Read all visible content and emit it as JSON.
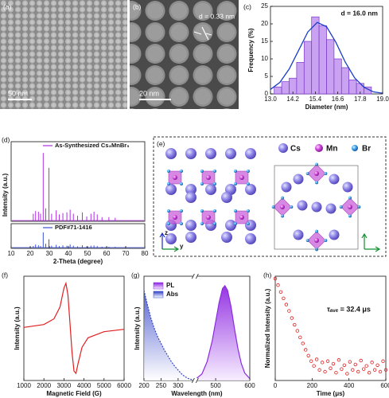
{
  "chart_data": [
    {
      "type": "image",
      "panel": "(a)",
      "scale_bar": "50 nm"
    },
    {
      "type": "image",
      "panel": "(b)",
      "scale_bar": "20 nm",
      "annotation": "d = 0.33 nm"
    },
    {
      "type": "histogram",
      "panel": "(c)",
      "xlabel": "Diameter (nm)",
      "ylabel": "Frequency (%)",
      "annotation": "d = 16.0 nm",
      "bins": [
        13.2,
        13.6,
        14.0,
        14.4,
        14.8,
        15.2,
        15.6,
        16.0,
        16.4,
        16.8,
        17.2,
        17.6,
        18.0,
        18.4
      ],
      "values": [
        2,
        3.5,
        4.5,
        9,
        15,
        22,
        19.5,
        15.5,
        10,
        7.5,
        4,
        3,
        2
      ],
      "color": "#c9a2f2",
      "fit": {
        "color": "#1a3cc8",
        "x": [
          13.0,
          13.5,
          14.0,
          14.5,
          15.0,
          15.5,
          16.0,
          16.5,
          17.0,
          17.5,
          18.0,
          18.5,
          19.0
        ],
        "values": [
          1.3,
          3.3,
          7.1,
          12.4,
          17.7,
          20.4,
          19.2,
          14.7,
          9.1,
          4.6,
          1.9,
          0.6,
          0.2
        ]
      },
      "xlim": [
        13.0,
        19.0
      ],
      "xticks": [
        {
          "value": 13,
          "label": "13.0"
        },
        {
          "value": 14.2,
          "label": "14.2"
        },
        {
          "value": 15.4,
          "label": "15.4"
        },
        {
          "value": 16.6,
          "label": "16.6"
        },
        {
          "value": 17.8,
          "label": "17.8"
        },
        {
          "value": 19,
          "label": "19.0"
        }
      ],
      "ylim": [
        0,
        25
      ],
      "yticks": [
        0,
        5,
        10,
        15,
        20,
        25
      ]
    },
    {
      "type": "xrd",
      "panel": "(d)",
      "xlabel": "2-Theta (degree)",
      "ylabel": "Intensity (a.u.)",
      "xlim": [
        10,
        80
      ],
      "xticks": [
        10,
        20,
        30,
        40,
        50,
        60,
        70,
        80
      ],
      "ylim": [
        0,
        1.05
      ],
      "series": [
        {
          "name": "As-Synthesized Cs₃MnBr₅",
          "color": "#b030e0",
          "x": [
            21.6,
            22.8,
            24.3,
            25.4,
            26.8,
            28.1,
            29.8,
            31.2,
            33.6,
            35.2,
            37.1,
            39.2,
            40.9,
            42.6,
            44.8,
            47.3,
            49.6,
            51.8,
            53.4,
            55.1,
            57.6,
            61.2,
            64.5
          ],
          "values": [
            0.1,
            0.14,
            0.13,
            0.1,
            1.0,
            0.18,
            0.78,
            0.1,
            0.15,
            0.09,
            0.11,
            0.12,
            0.16,
            0.1,
            0.07,
            0.12,
            0.06,
            0.1,
            0.13,
            0.09,
            0.05,
            0.05,
            0.04
          ]
        },
        {
          "name": "PDF#71-1416",
          "color": "#3b50d8",
          "x": [
            21.6,
            22.8,
            24.3,
            25.4,
            26.8,
            28.1,
            29.8,
            31.2,
            33.6,
            35.2,
            37.1,
            39.2,
            40.9,
            42.6,
            44.8,
            47.3,
            49.6,
            51.8,
            53.4,
            55.1,
            57.6,
            61.2,
            64.5
          ],
          "values": [
            0.1,
            0.2,
            0.15,
            0.1,
            1.0,
            0.25,
            0.55,
            0.12,
            0.18,
            0.1,
            0.14,
            0.12,
            0.2,
            0.12,
            0.08,
            0.15,
            0.07,
            0.12,
            0.14,
            0.1,
            0.06,
            0.05,
            0.05
          ]
        }
      ]
    },
    {
      "type": "structure",
      "panel": "(e)",
      "legend": [
        "Cs",
        "Mn",
        "Br"
      ],
      "axes": [
        "z",
        "y"
      ]
    },
    {
      "type": "line",
      "panel": "(f)",
      "xlabel": "Magnetic Field (G)",
      "ylabel": "Intensity (a.u.)",
      "color": "#e02020",
      "x": [
        1000,
        2000,
        2500,
        2800,
        3000,
        3100,
        3200,
        3300,
        3400,
        3500,
        3600,
        3700,
        3900,
        4200,
        5000,
        6000
      ],
      "values": [
        0.02,
        0.08,
        0.2,
        0.45,
        0.85,
        0.95,
        0.7,
        0.1,
        -0.5,
        -0.9,
        -0.95,
        -0.75,
        -0.4,
        -0.2,
        -0.07,
        -0.02
      ],
      "xlim": [
        1000,
        6000
      ],
      "xticks": [
        1000,
        2000,
        3000,
        4000,
        5000,
        6000
      ],
      "ylim": [
        -1.1,
        1.1
      ]
    },
    {
      "type": "spectrum",
      "panel": "(g)",
      "xlabel": "Wavelength (nm)",
      "ylabel": "Intensity (a.u.)",
      "xlim": [
        200,
        600
      ],
      "xbreak": [
        350,
        440
      ],
      "xticks": [
        200,
        250,
        300,
        500,
        600
      ],
      "ylim": [
        0,
        1.1
      ],
      "series": [
        {
          "name": "PL",
          "color": "#8a2be2",
          "x": [
            440,
            460,
            475,
            490,
            500,
            510,
            520,
            527,
            535,
            545,
            555,
            565,
            575,
            585,
            600
          ],
          "values": [
            0.01,
            0.07,
            0.2,
            0.42,
            0.62,
            0.82,
            0.97,
            1.0,
            0.95,
            0.78,
            0.55,
            0.34,
            0.18,
            0.08,
            0.02
          ]
        },
        {
          "name": "Abs",
          "color": "#2f45c8",
          "x": [
            200,
            210,
            220,
            230,
            240,
            250,
            260,
            270,
            280,
            290,
            300,
            310,
            320,
            330,
            340
          ],
          "values": [
            0.95,
            0.8,
            0.66,
            0.55,
            0.46,
            0.39,
            0.32,
            0.26,
            0.2,
            0.15,
            0.11,
            0.07,
            0.04,
            0.02,
            0.01
          ]
        }
      ]
    },
    {
      "type": "scatter",
      "panel": "(h)",
      "xlabel": "Time (μs)",
      "ylabel": "Normalized Intensity (a.u.)",
      "annotation": "τₐᵥₑ = 32.4 μs",
      "color": "#e02020",
      "yscale": "log",
      "x": [
        0,
        15,
        30,
        45,
        60,
        75,
        90,
        105,
        120,
        135,
        150,
        165,
        180,
        195,
        210,
        225,
        240,
        255,
        270,
        285,
        300,
        315,
        330,
        345,
        360,
        375,
        390,
        405,
        420,
        435,
        450,
        465,
        480,
        495,
        510,
        525,
        540,
        555,
        570,
        585,
        600
      ],
      "values": [
        1.0,
        0.78,
        0.6,
        0.47,
        0.37,
        0.29,
        0.22,
        0.17,
        0.135,
        0.105,
        0.083,
        0.065,
        0.052,
        0.042,
        0.035,
        0.045,
        0.03,
        0.04,
        0.028,
        0.042,
        0.032,
        0.038,
        0.027,
        0.044,
        0.031,
        0.036,
        0.026,
        0.041,
        0.03,
        0.037,
        0.028,
        0.043,
        0.031,
        0.035,
        0.027,
        0.04,
        0.03,
        0.036,
        0.028,
        0.042,
        0.03
      ],
      "xlim": [
        0,
        600
      ],
      "xticks": [
        0,
        200,
        400,
        600
      ],
      "ylim": [
        0.02,
        1.1
      ]
    }
  ]
}
